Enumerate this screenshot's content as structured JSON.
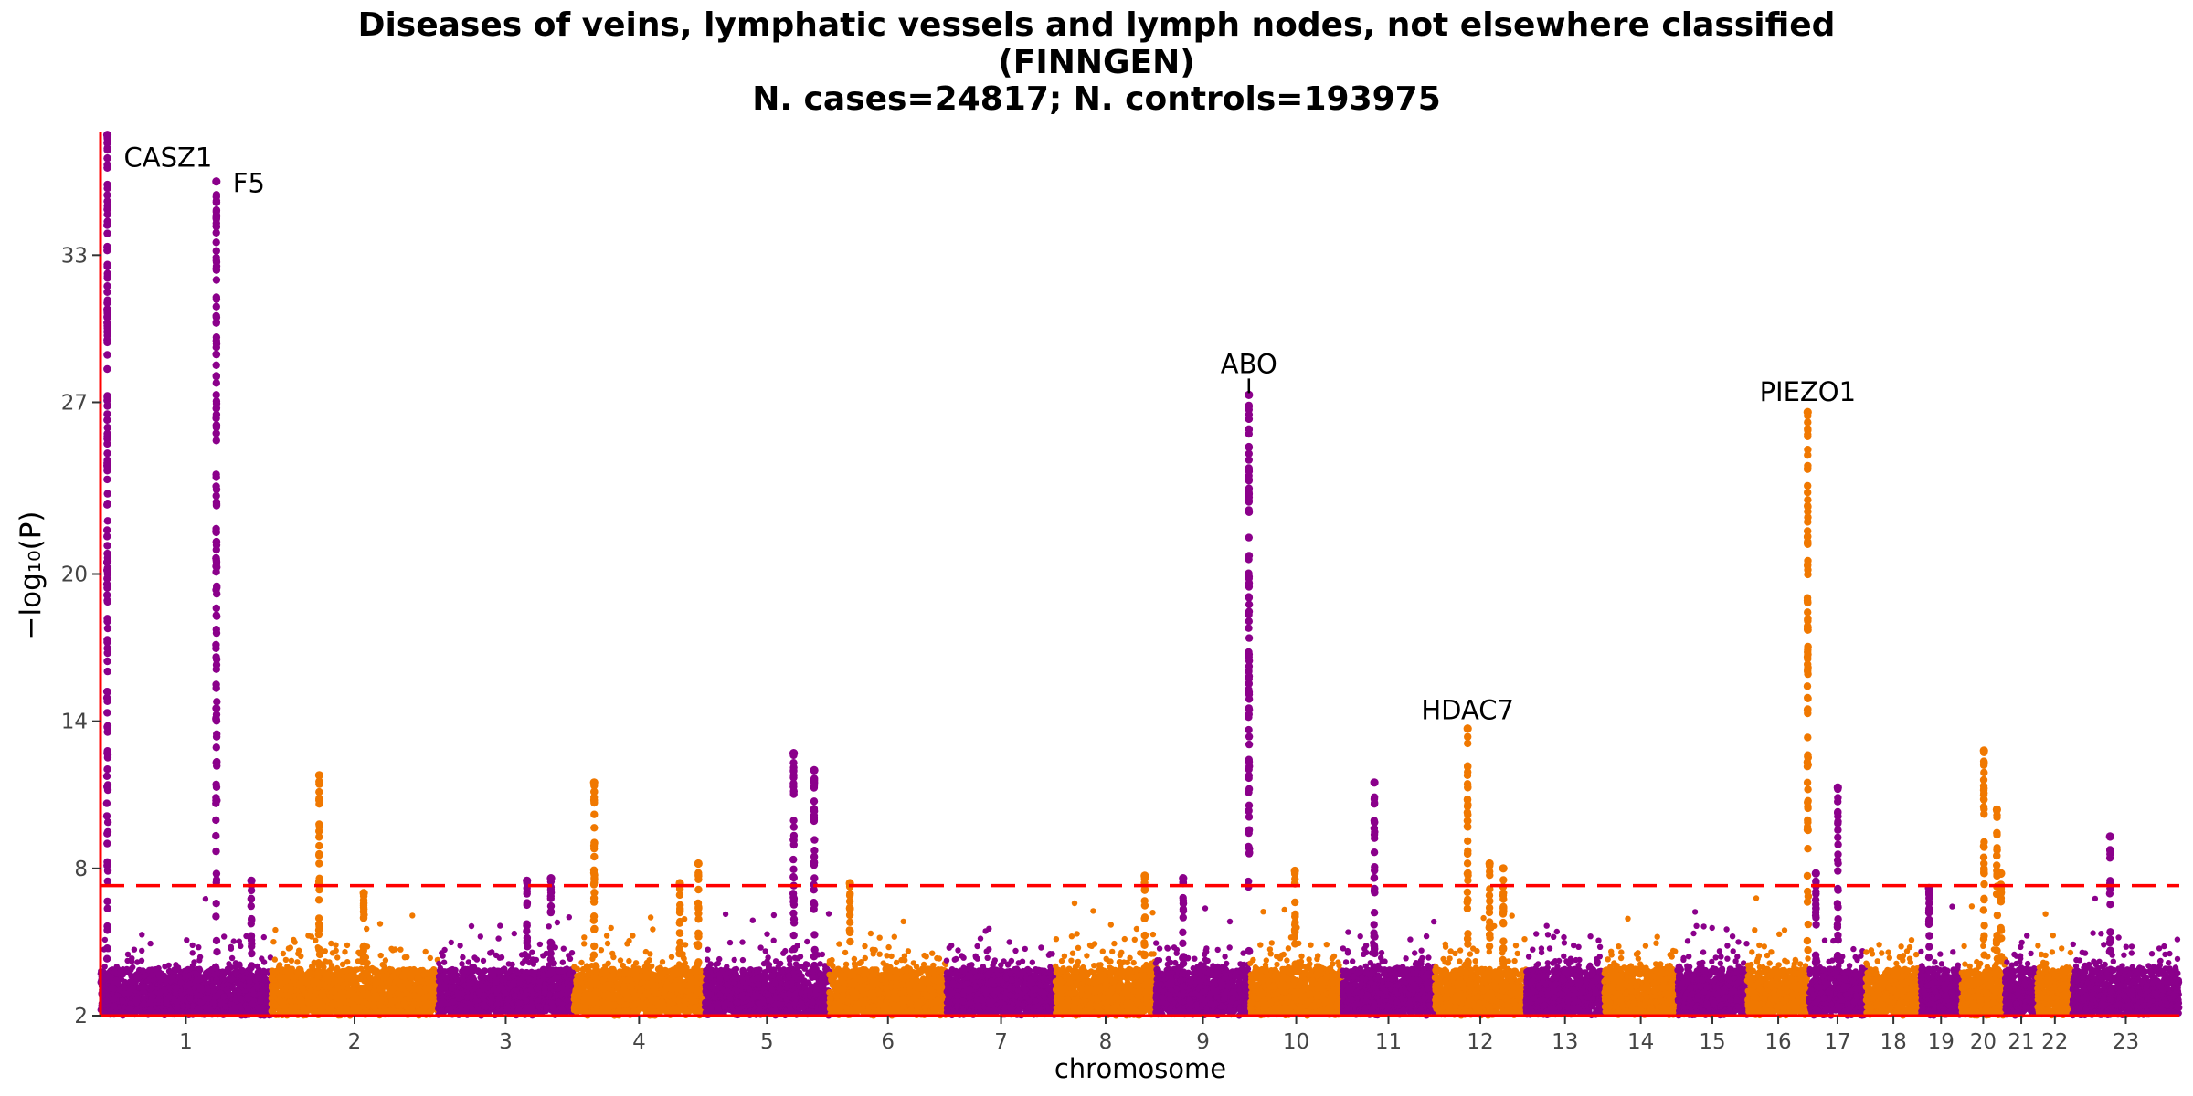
{
  "title": {
    "line1": "Diseases of veins, lymphatic vessels and lymph nodes, not elsewhere classified",
    "line2": "(FINNGEN)",
    "line3": "N. cases=24817; N. controls=193975"
  },
  "colors": {
    "odd": "#8b008b",
    "even": "#f07800",
    "threshold": "#ff0000",
    "axis": "#ff0000"
  },
  "chart_data": {
    "type": "scatter",
    "subtype": "manhattan",
    "xlabel": "chromosome",
    "ylabel": "−log₁₀(P)",
    "ylim": [
      2,
      38
    ],
    "yticks": [
      2,
      8,
      14,
      20,
      27,
      33
    ],
    "threshold": 7.3,
    "chromosomes": [
      {
        "label": "1",
        "length": 249
      },
      {
        "label": "2",
        "length": 243
      },
      {
        "label": "3",
        "length": 198
      },
      {
        "label": "4",
        "length": 191
      },
      {
        "label": "5",
        "length": 182
      },
      {
        "label": "6",
        "length": 171
      },
      {
        "label": "7",
        "length": 159
      },
      {
        "label": "8",
        "length": 146
      },
      {
        "label": "9",
        "length": 138
      },
      {
        "label": "10",
        "length": 134
      },
      {
        "label": "11",
        "length": 135
      },
      {
        "label": "12",
        "length": 133
      },
      {
        "label": "13",
        "length": 114
      },
      {
        "label": "14",
        "length": 107
      },
      {
        "label": "15",
        "length": 102
      },
      {
        "label": "16",
        "length": 90
      },
      {
        "label": "17",
        "length": 83
      },
      {
        "label": "18",
        "length": 80
      },
      {
        "label": "19",
        "length": 59
      },
      {
        "label": "20",
        "length": 64
      },
      {
        "label": "21",
        "length": 47
      },
      {
        "label": "22",
        "length": 51
      },
      {
        "label": "23",
        "length": 156
      }
    ],
    "peaks": [
      {
        "chrom": 1,
        "pos": 10,
        "max": 37.9,
        "label": "CASZ1"
      },
      {
        "chrom": 1,
        "pos": 169,
        "max": 36,
        "label": "F5"
      },
      {
        "chrom": 1,
        "pos": 220,
        "max": 7.5
      },
      {
        "chrom": 2,
        "pos": 70,
        "max": 11.8
      },
      {
        "chrom": 2,
        "pos": 135,
        "max": 7.0
      },
      {
        "chrom": 3,
        "pos": 130,
        "max": 7.5
      },
      {
        "chrom": 3,
        "pos": 165,
        "max": 7.6
      },
      {
        "chrom": 4,
        "pos": 30,
        "max": 11.5
      },
      {
        "chrom": 4,
        "pos": 155,
        "max": 7.4
      },
      {
        "chrom": 4,
        "pos": 182,
        "max": 8.2
      },
      {
        "chrom": 5,
        "pos": 130,
        "max": 12.7
      },
      {
        "chrom": 5,
        "pos": 160,
        "max": 12.0
      },
      {
        "chrom": 6,
        "pos": 30,
        "max": 7.4
      },
      {
        "chrom": 8,
        "pos": 130,
        "max": 7.7
      },
      {
        "chrom": 9,
        "pos": 40,
        "max": 7.6
      },
      {
        "chrom": 9,
        "pos": 136,
        "max": 27.3,
        "label": "ABO"
      },
      {
        "chrom": 10,
        "pos": 65,
        "max": 7.9
      },
      {
        "chrom": 11,
        "pos": 47,
        "max": 11.5
      },
      {
        "chrom": 12,
        "pos": 48,
        "max": 13.7,
        "label": "HDAC7"
      },
      {
        "chrom": 12,
        "pos": 80,
        "max": 8.2
      },
      {
        "chrom": 12,
        "pos": 100,
        "max": 8.0
      },
      {
        "chrom": 16,
        "pos": 88,
        "max": 26.6,
        "label": "PIEZO1"
      },
      {
        "chrom": 17,
        "pos": 10,
        "max": 7.8
      },
      {
        "chrom": 17,
        "pos": 42,
        "max": 11.3
      },
      {
        "chrom": 19,
        "pos": 12,
        "max": 7.2
      },
      {
        "chrom": 20,
        "pos": 33,
        "max": 12.8
      },
      {
        "chrom": 20,
        "pos": 52,
        "max": 10.4
      },
      {
        "chrom": 20,
        "pos": 58,
        "max": 7.8
      },
      {
        "chrom": 23,
        "pos": 55,
        "max": 9.3
      }
    ]
  }
}
